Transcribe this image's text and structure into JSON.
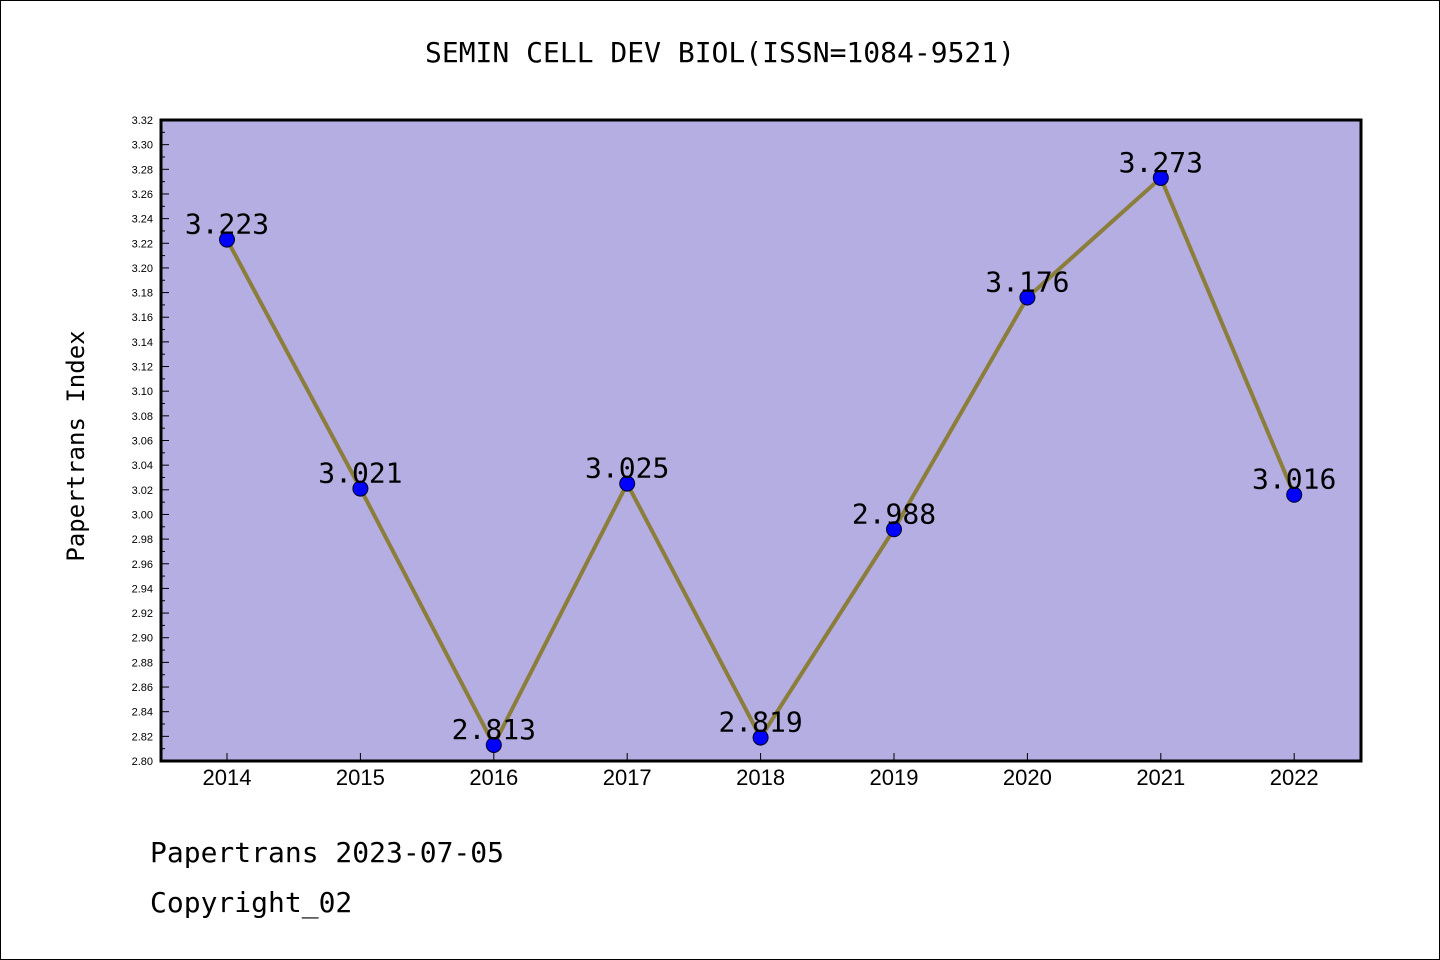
{
  "chart_data": {
    "type": "line",
    "title": "SEMIN CELL DEV BIOL(ISSN=1084-9521)",
    "xlabel": "",
    "ylabel": "Papertrans Index",
    "categories": [
      "2014",
      "2015",
      "2016",
      "2017",
      "2018",
      "2019",
      "2020",
      "2021",
      "2022"
    ],
    "values": [
      3.223,
      3.021,
      2.813,
      3.025,
      2.819,
      2.988,
      3.176,
      3.273,
      3.016
    ],
    "data_labels": [
      "3.223",
      "3.021",
      "2.813",
      "3.025",
      "2.819",
      "2.988",
      "3.176",
      "3.273",
      "3.016"
    ],
    "ylim": [
      2.8,
      3.32
    ],
    "yticks": [
      "2.80",
      "2.82",
      "2.84",
      "2.86",
      "2.88",
      "2.90",
      "2.92",
      "2.94",
      "2.96",
      "2.98",
      "3.00",
      "3.02",
      "3.04",
      "3.06",
      "3.08",
      "3.10",
      "3.12",
      "3.14",
      "3.16",
      "3.18",
      "3.20",
      "3.22",
      "3.24",
      "3.26",
      "3.28",
      "3.30",
      "3.32"
    ],
    "grid": false,
    "colors": {
      "plot_background": "#b4aee2",
      "line": "#8b7d3a",
      "marker": "#0000ff"
    }
  },
  "footer": {
    "line1": "Papertrans 2023-07-05",
    "line2": "Copyright_02"
  }
}
